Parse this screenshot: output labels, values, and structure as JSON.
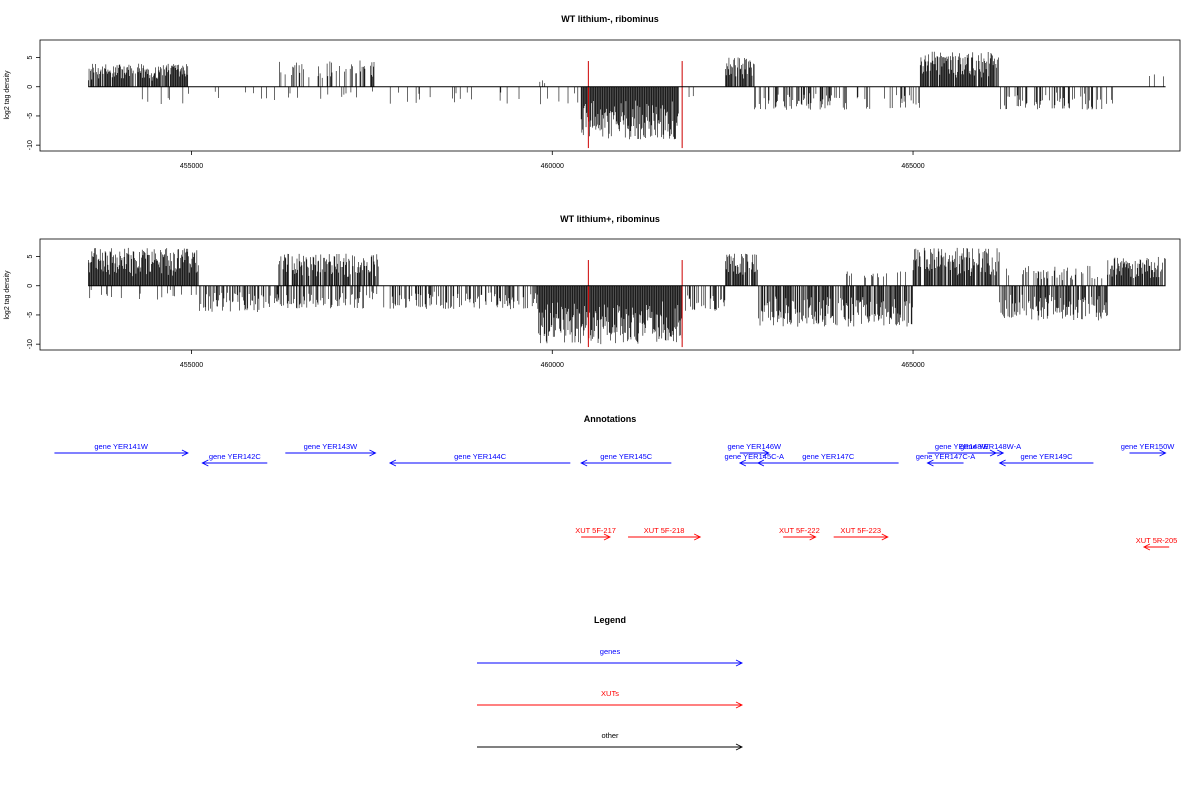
{
  "chart_data": [
    {
      "type": "bar",
      "title": "WT lithium-, ribominus",
      "ylabel": "log2 tag density",
      "xlim": [
        452900,
        468700
      ],
      "ylim": [
        -11,
        8
      ],
      "xticks": [
        455000,
        460000,
        465000
      ],
      "yticks": [
        5,
        0,
        -5,
        -10
      ],
      "highlight_color": "#cc0000",
      "highlight_x": [
        460500,
        461800
      ],
      "bar_color": "#000000",
      "regions": [
        {
          "start": 453570,
          "end": 454950,
          "sign": 1,
          "max": 4.0,
          "density": 0.9
        },
        {
          "start": 453570,
          "end": 454950,
          "sign": -1,
          "max": 3.0,
          "density": 0.03
        },
        {
          "start": 454950,
          "end": 456200,
          "sign": -1,
          "max": 2.5,
          "density": 0.05
        },
        {
          "start": 456200,
          "end": 457550,
          "sign": 1,
          "max": 4.5,
          "density": 0.35
        },
        {
          "start": 456200,
          "end": 457550,
          "sign": -1,
          "max": 2.5,
          "density": 0.05
        },
        {
          "start": 457550,
          "end": 460400,
          "sign": -1,
          "max": 3.0,
          "density": 0.05
        },
        {
          "start": 459750,
          "end": 459900,
          "sign": 1,
          "max": 1.5,
          "density": 0.2
        },
        {
          "start": 460400,
          "end": 461750,
          "sign": -1,
          "max": 9.0,
          "density": 1.0
        },
        {
          "start": 461750,
          "end": 462400,
          "sign": -1,
          "max": 2.5,
          "density": 0.04
        },
        {
          "start": 462400,
          "end": 462800,
          "sign": 1,
          "max": 5.0,
          "density": 0.9
        },
        {
          "start": 462800,
          "end": 465100,
          "sign": -1,
          "max": 4.0,
          "density": 0.3
        },
        {
          "start": 465100,
          "end": 466200,
          "sign": 1,
          "max": 6.0,
          "density": 0.9
        },
        {
          "start": 466200,
          "end": 467800,
          "sign": -1,
          "max": 4.0,
          "density": 0.35
        },
        {
          "start": 467800,
          "end": 468500,
          "sign": 1,
          "max": 2.5,
          "density": 0.08
        }
      ]
    },
    {
      "type": "bar",
      "title": "WT lithium+, ribominus",
      "ylabel": "log2 tag density",
      "xlim": [
        452900,
        468700
      ],
      "ylim": [
        -11,
        8
      ],
      "xticks": [
        455000,
        460000,
        465000
      ],
      "yticks": [
        5,
        0,
        -5,
        -10
      ],
      "highlight_color": "#cc0000",
      "highlight_x": [
        460500,
        461800
      ],
      "bar_color": "#000000",
      "regions": [
        {
          "start": 453570,
          "end": 455100,
          "sign": 1,
          "max": 6.5,
          "density": 1.0
        },
        {
          "start": 453570,
          "end": 455100,
          "sign": -1,
          "max": 2.5,
          "density": 0.08
        },
        {
          "start": 455100,
          "end": 456200,
          "sign": -1,
          "max": 4.5,
          "density": 0.5
        },
        {
          "start": 456200,
          "end": 457600,
          "sign": 1,
          "max": 5.5,
          "density": 0.8
        },
        {
          "start": 456200,
          "end": 459800,
          "sign": -1,
          "max": 4.0,
          "density": 0.5
        },
        {
          "start": 459800,
          "end": 461800,
          "sign": -1,
          "max": 10.0,
          "density": 1.0
        },
        {
          "start": 461800,
          "end": 462400,
          "sign": -1,
          "max": 4.5,
          "density": 0.4
        },
        {
          "start": 462400,
          "end": 462850,
          "sign": 1,
          "max": 5.5,
          "density": 0.9
        },
        {
          "start": 462850,
          "end": 465000,
          "sign": -1,
          "max": 7.0,
          "density": 0.8
        },
        {
          "start": 464000,
          "end": 465000,
          "sign": 1,
          "max": 2.5,
          "density": 0.2
        },
        {
          "start": 465000,
          "end": 466200,
          "sign": 1,
          "max": 6.5,
          "density": 0.9
        },
        {
          "start": 466200,
          "end": 467700,
          "sign": -1,
          "max": 6.0,
          "density": 0.7
        },
        {
          "start": 466200,
          "end": 467700,
          "sign": 1,
          "max": 3.5,
          "density": 0.3
        },
        {
          "start": 467700,
          "end": 468500,
          "sign": 1,
          "max": 5.0,
          "density": 0.9
        }
      ]
    }
  ],
  "annotations": {
    "title": "Annotations",
    "xlim": [
      452900,
      468700
    ],
    "genes_color": "#0000ff",
    "xuts_color": "#ff0000",
    "features": [
      {
        "label": "gene YER141W",
        "start": 453100,
        "end": 454950,
        "dir": "right",
        "row": 1,
        "kind": "gene"
      },
      {
        "label": "gene YER142C",
        "start": 455150,
        "end": 456050,
        "dir": "left",
        "row": 2,
        "kind": "gene"
      },
      {
        "label": "gene YER143W",
        "start": 456300,
        "end": 457550,
        "dir": "right",
        "row": 1,
        "kind": "gene"
      },
      {
        "label": "gene YER144C",
        "start": 457750,
        "end": 460250,
        "dir": "left",
        "row": 2,
        "kind": "gene"
      },
      {
        "label": "gene YER145C",
        "start": 460400,
        "end": 461650,
        "dir": "left",
        "row": 2,
        "kind": "gene"
      },
      {
        "label": "gene YER146W",
        "start": 462600,
        "end": 463000,
        "dir": "right",
        "row": 1,
        "kind": "gene"
      },
      {
        "label": "gene YER145C-A",
        "start": 462600,
        "end": 463000,
        "dir": "left",
        "row": 2,
        "kind": "gene"
      },
      {
        "label": "gene YER147C",
        "start": 462850,
        "end": 464800,
        "dir": "left",
        "row": 2,
        "kind": "gene"
      },
      {
        "label": "gene YER148W",
        "start": 465200,
        "end": 466150,
        "dir": "right",
        "row": 1,
        "kind": "gene"
      },
      {
        "label": "gene YER147C-A",
        "start": 465200,
        "end": 465700,
        "dir": "left",
        "row": 2,
        "kind": "gene"
      },
      {
        "label": "gene YER148W-A",
        "start": 465900,
        "end": 466250,
        "dir": "right",
        "row": 1,
        "kind": "gene"
      },
      {
        "label": "gene YER149C",
        "start": 466200,
        "end": 467500,
        "dir": "left",
        "row": 2,
        "kind": "gene"
      },
      {
        "label": "gene YER150W",
        "start": 468000,
        "end": 468500,
        "dir": "right",
        "row": 1,
        "kind": "gene"
      },
      {
        "label": "XUT 5F-217",
        "start": 460400,
        "end": 460800,
        "dir": "right",
        "row": 3,
        "kind": "xut"
      },
      {
        "label": "XUT 5F-218",
        "start": 461050,
        "end": 462050,
        "dir": "right",
        "row": 3,
        "kind": "xut"
      },
      {
        "label": "XUT 5F-222",
        "start": 463200,
        "end": 463650,
        "dir": "right",
        "row": 3,
        "kind": "xut"
      },
      {
        "label": "XUT 5F-223",
        "start": 463900,
        "end": 464650,
        "dir": "right",
        "row": 3,
        "kind": "xut"
      },
      {
        "label": "XUT 5R-205",
        "start": 468200,
        "end": 468550,
        "dir": "left",
        "row": 4,
        "kind": "xut"
      }
    ]
  },
  "legend": {
    "title": "Legend",
    "items": [
      {
        "label": "genes",
        "color": "#0000ff"
      },
      {
        "label": "XUTs",
        "color": "#ff0000"
      },
      {
        "label": "other",
        "color": "#000000"
      }
    ]
  }
}
